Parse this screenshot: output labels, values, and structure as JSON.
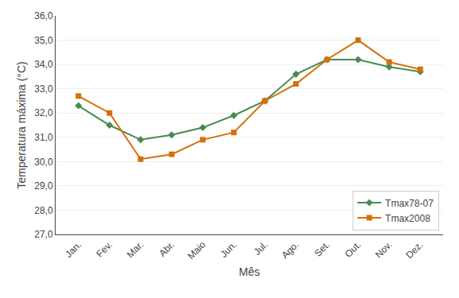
{
  "chart_data": {
    "type": "line",
    "xlabel": "Mês",
    "ylabel": "Temperatura máxima (°C)",
    "categories": [
      "Jan.",
      "Fev.",
      "Mar.",
      "Abr.",
      "Maio",
      "Jun.",
      "Jul.",
      "Ago.",
      "Set.",
      "Out.",
      "Nov.",
      "Dez."
    ],
    "series": [
      {
        "name": "Tmax78-07",
        "color": "#4a8a50",
        "marker": "diamond",
        "values": [
          32.3,
          31.5,
          30.9,
          31.1,
          31.4,
          31.9,
          32.5,
          33.6,
          34.2,
          34.2,
          33.9,
          33.7
        ]
      },
      {
        "name": "Tmax2008",
        "color": "#d4700a",
        "marker": "square",
        "values": [
          32.7,
          32.0,
          30.1,
          30.3,
          30.9,
          31.2,
          32.5,
          33.2,
          34.2,
          35.0,
          34.1,
          33.8
        ]
      }
    ],
    "ylim": [
      27.0,
      36.0
    ],
    "yticks": [
      {
        "value": 27.0,
        "label": "27,0"
      },
      {
        "value": 28.0,
        "label": "28,0"
      },
      {
        "value": 29.0,
        "label": "29,0"
      },
      {
        "value": 30.0,
        "label": "30,0"
      },
      {
        "value": 31.0,
        "label": "31,0"
      },
      {
        "value": 32.0,
        "label": "32,0"
      },
      {
        "value": 33.0,
        "label": "33,0"
      },
      {
        "value": 34.0,
        "label": "34,0"
      },
      {
        "value": 35.0,
        "label": "35,0"
      },
      {
        "value": 36.0,
        "label": "36,0"
      }
    ],
    "grid": true,
    "legend": "lower right"
  }
}
